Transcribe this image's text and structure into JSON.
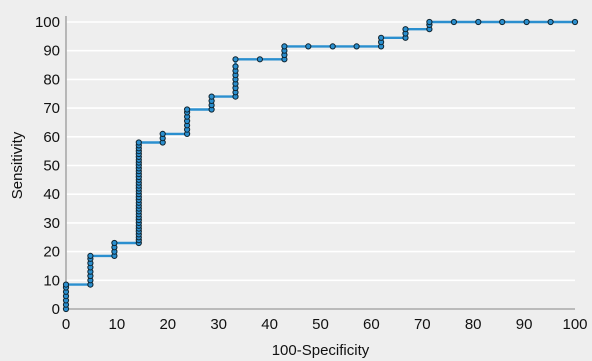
{
  "chart_data": {
    "type": "line",
    "title": "",
    "xlabel": "100-Specificity",
    "ylabel": "Sensitivity",
    "xlim": [
      0,
      100
    ],
    "ylim": [
      0,
      100
    ],
    "xticks": [
      0,
      10,
      20,
      30,
      40,
      50,
      60,
      70,
      80,
      90,
      100
    ],
    "yticks": [
      0,
      10,
      20,
      30,
      40,
      50,
      60,
      70,
      80,
      90,
      100
    ],
    "grid": true,
    "markers": true,
    "step": true,
    "colors": {
      "line": "#2a8fcf",
      "marker_edge": "#0f2430",
      "grid": "#ffffff",
      "axis": "#a9a9a9",
      "background": "#eeeeee"
    },
    "series": [
      {
        "points": [
          [
            0,
            0
          ],
          [
            0,
            1.5
          ],
          [
            0,
            3
          ],
          [
            0,
            4.5
          ],
          [
            0,
            6
          ],
          [
            0,
            7.5
          ],
          [
            0,
            8.5
          ],
          [
            4.8,
            8.5
          ],
          [
            4.8,
            10
          ],
          [
            4.8,
            11.5
          ],
          [
            4.8,
            13
          ],
          [
            4.8,
            14.5
          ],
          [
            4.8,
            16
          ],
          [
            4.8,
            17.5
          ],
          [
            4.8,
            18.5
          ],
          [
            9.5,
            18.5
          ],
          [
            9.5,
            20
          ],
          [
            9.5,
            21.5
          ],
          [
            9.5,
            23
          ],
          [
            14.3,
            23
          ],
          [
            14.3,
            24
          ],
          [
            14.3,
            25
          ],
          [
            14.3,
            26
          ],
          [
            14.3,
            27
          ],
          [
            14.3,
            28
          ],
          [
            14.3,
            29
          ],
          [
            14.3,
            30
          ],
          [
            14.3,
            31
          ],
          [
            14.3,
            32
          ],
          [
            14.3,
            33
          ],
          [
            14.3,
            34
          ],
          [
            14.3,
            35
          ],
          [
            14.3,
            36
          ],
          [
            14.3,
            37
          ],
          [
            14.3,
            38
          ],
          [
            14.3,
            39
          ],
          [
            14.3,
            40
          ],
          [
            14.3,
            41
          ],
          [
            14.3,
            42
          ],
          [
            14.3,
            43
          ],
          [
            14.3,
            44
          ],
          [
            14.3,
            45
          ],
          [
            14.3,
            46
          ],
          [
            14.3,
            47
          ],
          [
            14.3,
            48
          ],
          [
            14.3,
            49
          ],
          [
            14.3,
            50
          ],
          [
            14.3,
            51
          ],
          [
            14.3,
            52
          ],
          [
            14.3,
            53
          ],
          [
            14.3,
            54
          ],
          [
            14.3,
            55
          ],
          [
            14.3,
            56
          ],
          [
            14.3,
            57
          ],
          [
            14.3,
            58
          ],
          [
            19,
            58
          ],
          [
            19,
            59.5
          ],
          [
            19,
            61
          ],
          [
            23.8,
            61
          ],
          [
            23.8,
            62.5
          ],
          [
            23.8,
            64
          ],
          [
            23.8,
            65.5
          ],
          [
            23.8,
            67
          ],
          [
            23.8,
            68.5
          ],
          [
            23.8,
            69.5
          ],
          [
            28.6,
            69.5
          ],
          [
            28.6,
            71
          ],
          [
            28.6,
            72.5
          ],
          [
            28.6,
            74
          ],
          [
            33.3,
            74
          ],
          [
            33.3,
            75.5
          ],
          [
            33.3,
            77
          ],
          [
            33.3,
            78.5
          ],
          [
            33.3,
            80
          ],
          [
            33.3,
            81.5
          ],
          [
            33.3,
            83
          ],
          [
            33.3,
            84.5
          ],
          [
            33.3,
            87
          ],
          [
            38.1,
            87
          ],
          [
            42.9,
            87
          ],
          [
            42.9,
            88.5
          ],
          [
            42.9,
            90
          ],
          [
            42.9,
            91.5
          ],
          [
            47.6,
            91.5
          ],
          [
            52.4,
            91.5
          ],
          [
            57.1,
            91.5
          ],
          [
            61.9,
            91.5
          ],
          [
            61.9,
            93
          ],
          [
            61.9,
            94.5
          ],
          [
            66.7,
            94.5
          ],
          [
            66.7,
            96
          ],
          [
            66.7,
            97.5
          ],
          [
            71.4,
            97.5
          ],
          [
            71.4,
            99
          ],
          [
            71.4,
            100
          ],
          [
            76.2,
            100
          ],
          [
            81,
            100
          ],
          [
            85.7,
            100
          ],
          [
            90.5,
            100
          ],
          [
            95.2,
            100
          ],
          [
            100,
            100
          ]
        ]
      }
    ]
  }
}
